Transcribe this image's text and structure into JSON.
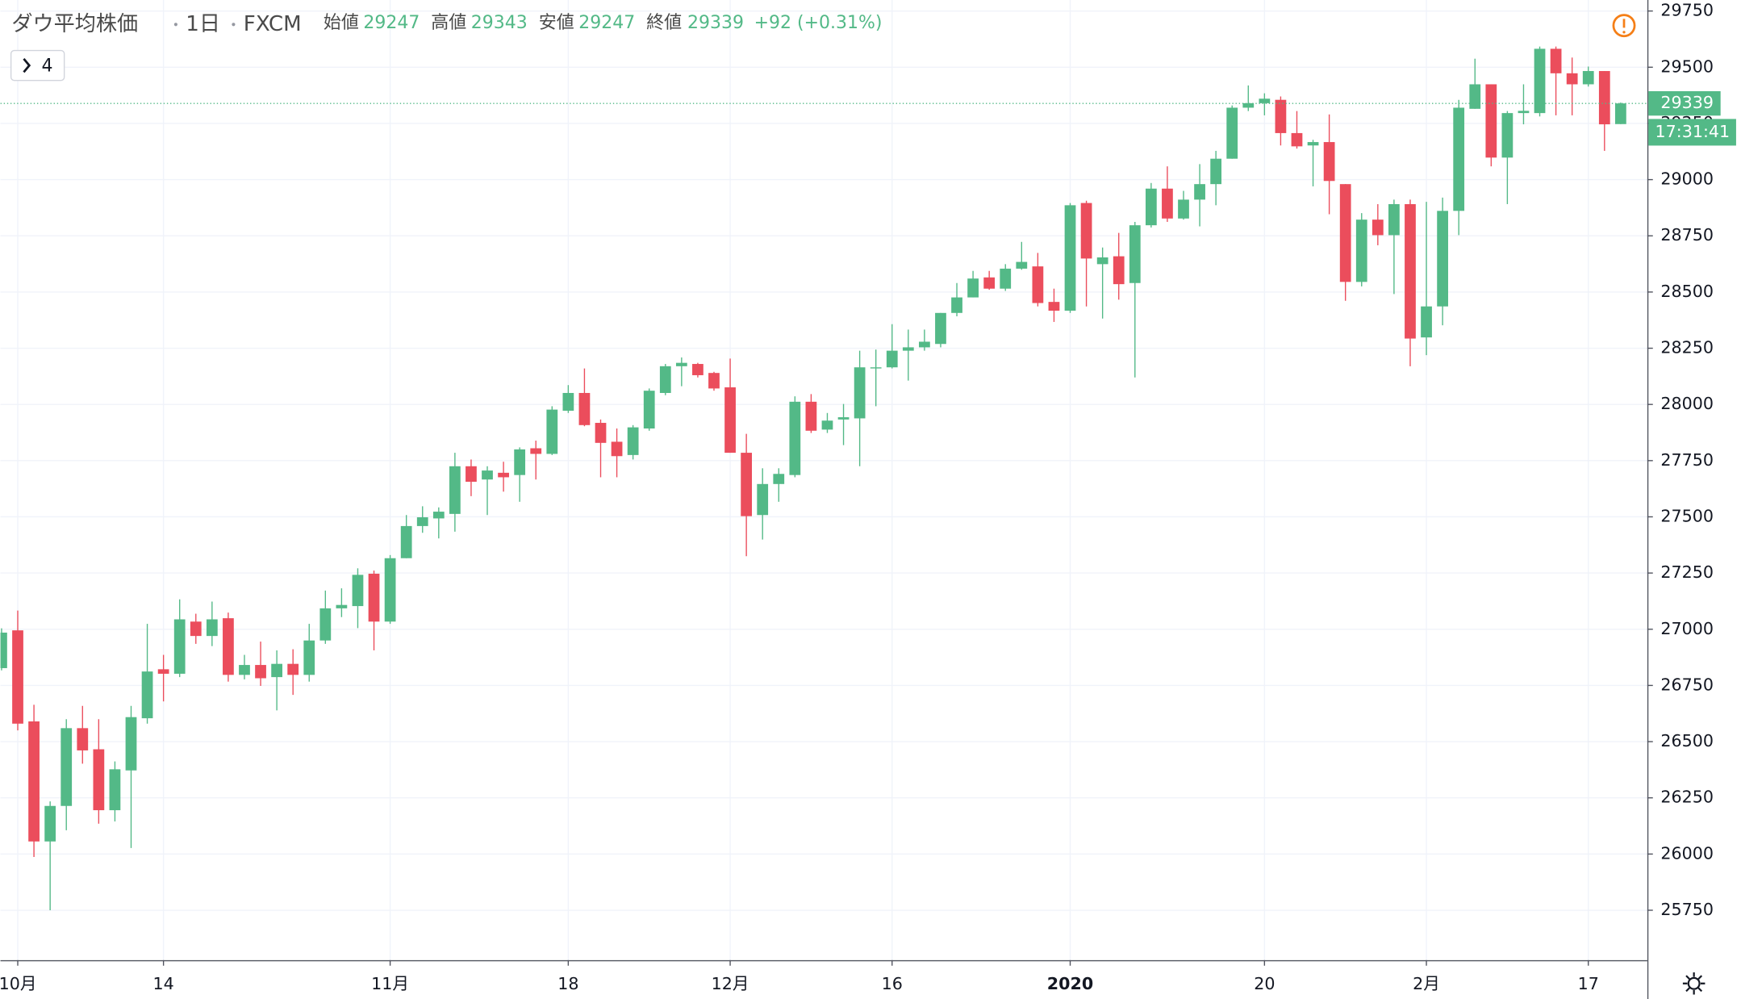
{
  "header": {
    "title": "ダウ平均株価",
    "interval": "1日",
    "source": "FXCM",
    "open_label": "始値",
    "open": 29247,
    "high_label": "高値",
    "high": 29343,
    "low_label": "安値",
    "low": 29247,
    "close_label": "終値",
    "close": 29339,
    "change": "+92 (+0.31%)",
    "indicators_count": 4,
    "countdown": "17:31:41"
  },
  "chart_data": {
    "type": "candlestick",
    "categories": [
      null,
      "10月",
      null,
      null,
      null,
      null,
      null,
      null,
      null,
      null,
      "14",
      null,
      null,
      null,
      null,
      null,
      null,
      null,
      null,
      null,
      null,
      null,
      null,
      null,
      "11月",
      null,
      null,
      null,
      null,
      null,
      null,
      null,
      null,
      null,
      null,
      "18",
      null,
      null,
      null,
      null,
      null,
      null,
      null,
      null,
      null,
      "12月",
      null,
      null,
      null,
      null,
      null,
      null,
      null,
      null,
      null,
      "16",
      null,
      null,
      null,
      null,
      null,
      null,
      null,
      null,
      null,
      null,
      "2020",
      null,
      null,
      null,
      null,
      null,
      null,
      null,
      null,
      null,
      null,
      null,
      "20",
      null,
      null,
      null,
      null,
      null,
      null,
      null,
      null,
      null,
      "2月",
      null,
      null,
      null,
      null,
      null,
      null,
      null,
      null,
      null,
      "17",
      null,
      null
    ],
    "open": [
      26827,
      26995,
      26590,
      26056,
      26214,
      26560,
      26466,
      26195,
      26372,
      26604,
      26822,
      26802,
      27034,
      26970,
      27049,
      26797,
      26841,
      26787,
      26846,
      26797,
      26950,
      27093,
      27103,
      27247,
      27034,
      27316,
      27459,
      27493,
      27513,
      27725,
      27666,
      27696,
      27686,
      27805,
      27780,
      27972,
      28051,
      27918,
      27834,
      27775,
      27893,
      28051,
      28170,
      28180,
      28140,
      28076,
      27785,
      27508,
      27646,
      27686,
      28012,
      27888,
      27933,
      27938,
      28160,
      28165,
      28239,
      28254,
      28269,
      28407,
      28476,
      28565,
      28515,
      28604,
      28614,
      28456,
      28417,
      28896,
      28624,
      28659,
      28540,
      28797,
      28960,
      28827,
      28911,
      28980,
      29093,
      29320,
      29340,
      29355,
      29207,
      29152,
      29167,
      28980,
      28545,
      28822,
      28753,
      28891,
      28298,
      28436,
      28861,
      29315,
      29424,
      29098,
      29296,
      29296,
      29582,
      29473,
      29424,
      29483,
      29247
    ],
    "high": [
      27004,
      27083,
      26664,
      26234,
      26600,
      26659,
      26600,
      26412,
      26659,
      27024,
      26886,
      27133,
      27069,
      27123,
      27074,
      26886,
      26945,
      26906,
      26911,
      27024,
      27172,
      27182,
      27271,
      27261,
      27330,
      27508,
      27547,
      27542,
      27785,
      27755,
      27725,
      27745,
      27809,
      27839,
      27992,
      28086,
      28160,
      27933,
      27893,
      27908,
      28071,
      28180,
      28209,
      28185,
      28145,
      28204,
      27869,
      27716,
      27716,
      28036,
      28046,
      27962,
      28002,
      28239,
      28244,
      28357,
      28333,
      28333,
      28407,
      28540,
      28594,
      28594,
      28624,
      28723,
      28674,
      28515,
      28896,
      28906,
      28698,
      28763,
      28812,
      28985,
      29059,
      28950,
      29069,
      29128,
      29330,
      29419,
      29384,
      29370,
      29305,
      29177,
      29290,
      28980,
      28851,
      28891,
      28911,
      28911,
      28901,
      28920,
      29355,
      29538,
      29424,
      29305,
      29424,
      29592,
      29592,
      29543,
      29503,
      29483,
      29343
    ],
    "low": [
      26817,
      26550,
      25987,
      25750,
      26106,
      26402,
      26135,
      26145,
      26027,
      26580,
      26679,
      26787,
      26935,
      26925,
      26767,
      26777,
      26748,
      26639,
      26708,
      26767,
      26935,
      27054,
      27005,
      26906,
      27024,
      27316,
      27429,
      27404,
      27434,
      27592,
      27508,
      27612,
      27567,
      27666,
      27775,
      27962,
      27903,
      27676,
      27676,
      27755,
      27883,
      28041,
      28081,
      28120,
      28061,
      27785,
      27325,
      27399,
      27567,
      27676,
      27873,
      27873,
      27819,
      27725,
      27992,
      28160,
      28106,
      28239,
      28254,
      28392,
      28476,
      28510,
      28505,
      28599,
      28436,
      28367,
      28407,
      28436,
      28382,
      28466,
      28120,
      28787,
      28812,
      28822,
      28792,
      28886,
      29093,
      29305,
      29286,
      29152,
      29138,
      28970,
      28846,
      28461,
      28525,
      28708,
      28491,
      28170,
      28219,
      28352,
      28753,
      29315,
      29059,
      28891,
      29246,
      29281,
      29286,
      29286,
      29414,
      29128,
      29247
    ],
    "close": [
      26985,
      26580,
      26056,
      26214,
      26560,
      26461,
      26195,
      26377,
      26609,
      26812,
      26802,
      27044,
      26970,
      27044,
      26797,
      26841,
      26782,
      26846,
      26797,
      26950,
      27093,
      27108,
      27242,
      27034,
      27316,
      27459,
      27498,
      27523,
      27725,
      27656,
      27706,
      27676,
      27800,
      27780,
      27977,
      28051,
      27908,
      27829,
      27770,
      27898,
      28061,
      28170,
      28185,
      28130,
      28071,
      27785,
      27503,
      27646,
      27691,
      28012,
      27883,
      27928,
      27943,
      28165,
      28165,
      28239,
      28254,
      28279,
      28407,
      28476,
      28560,
      28515,
      28604,
      28634,
      28451,
      28417,
      28886,
      28649,
      28654,
      28535,
      28797,
      28960,
      28827,
      28911,
      28980,
      29093,
      29320,
      29340,
      29360,
      29207,
      29148,
      29167,
      28994,
      28545,
      28822,
      28753,
      28891,
      28293,
      28436,
      28861,
      29320,
      29424,
      29098,
      29296,
      29306,
      29582,
      29473,
      29424,
      29483,
      29246,
      29339
    ],
    "up_color": "#53b987",
    "down_color": "#eb4d5c",
    "ylim": [
      25528,
      29799
    ],
    "yticks": [
      25750,
      26000,
      26250,
      26500,
      26750,
      27000,
      27250,
      27500,
      27750,
      28000,
      28250,
      28500,
      28750,
      29000,
      29250,
      29500,
      29750
    ],
    "grid": true,
    "last_price_line": true
  }
}
